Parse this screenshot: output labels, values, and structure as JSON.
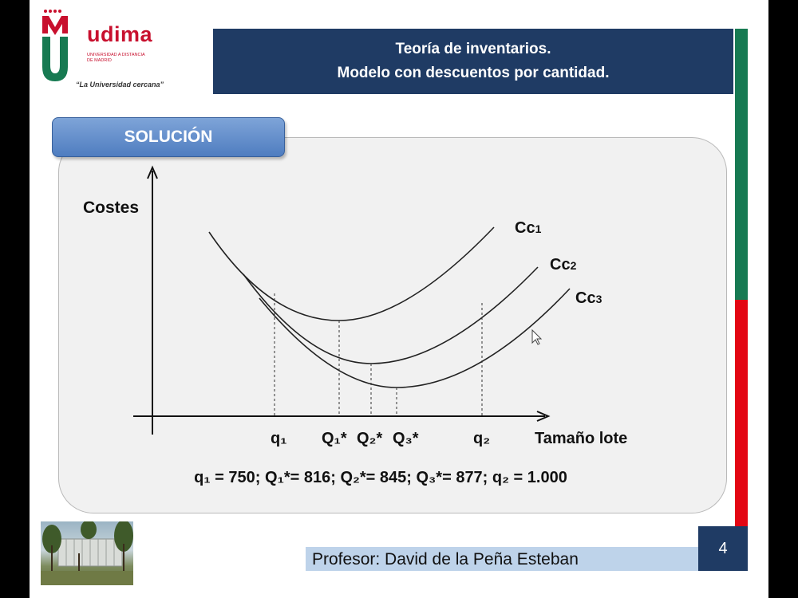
{
  "logo": {
    "name": "udima",
    "subtitle_line1": "UNIVERSIDAD A DISTANCIA",
    "subtitle_line2": "DE MADRID",
    "tagline": "“La Universidad cercana”"
  },
  "header": {
    "title_line1": "Teoría de inventarios.",
    "title_line2": "Modelo con descuentos por cantidad."
  },
  "section": {
    "label": "SOLUCIÓN"
  },
  "diagram": {
    "y_axis_label": "Costes",
    "x_axis_label": "Tamaño lote",
    "x_markers": [
      "q₁",
      "Q₁*",
      "Q₂*",
      "Q₃*",
      "q₂"
    ],
    "curves": [
      {
        "name": "Cc₁",
        "base": "Cc",
        "sub": "1"
      },
      {
        "name": "Cc₂",
        "base": "Cc",
        "sub": "2"
      },
      {
        "name": "Cc₃",
        "base": "Cc",
        "sub": "3"
      }
    ]
  },
  "summary": "q₁ = 750; Q₁*= 816; Q₂*= 845; Q₃*= 877; q₂ = 1.000",
  "footer": {
    "professor": "Profesor: David de la Peña Esteban",
    "page_number": "4"
  },
  "colors": {
    "navy": "#1f3b64",
    "udima_red": "#c8102e",
    "udima_green": "#177a52",
    "stripe_red": "#e30613",
    "tab_blue": "#5b87c7"
  }
}
